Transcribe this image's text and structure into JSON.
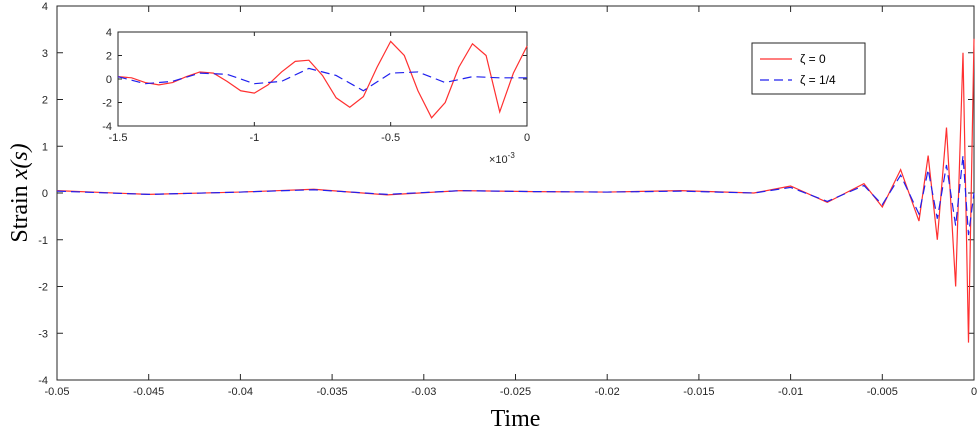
{
  "chart_data": [
    {
      "type": "line",
      "xlabel": "Time",
      "ylabel_prefix": "Strain ",
      "ylabel_math": "x(s)",
      "xlim": [
        -0.05,
        0
      ],
      "ylim": [
        -4,
        4
      ],
      "x_ticks": [
        -0.05,
        -0.045,
        -0.04,
        -0.035,
        -0.03,
        -0.025,
        -0.02,
        -0.015,
        -0.01,
        -0.005,
        0
      ],
      "x_tick_labels": [
        "-0.05",
        "-0.045",
        "-0.04",
        "-0.035",
        "-0.03",
        "-0.025",
        "-0.02",
        "-0.015",
        "-0.01",
        "-0.005",
        "0"
      ],
      "y_ticks": [
        -4,
        -3,
        -2,
        -1,
        0,
        1,
        2,
        3,
        4
      ],
      "y_tick_labels": [
        "-4",
        "-3",
        "-2",
        "-1",
        "0",
        "1",
        "2",
        "3",
        "4"
      ],
      "grid": false,
      "legend_position": "top-right",
      "series": [
        {
          "name": "ζ = 0",
          "color": "#ff3030",
          "style": "solid",
          "x": [
            -0.05,
            -0.045,
            -0.04,
            -0.036,
            -0.032,
            -0.028,
            -0.024,
            -0.02,
            -0.016,
            -0.012,
            -0.01,
            -0.008,
            -0.006,
            -0.005,
            -0.004,
            -0.003,
            -0.0025,
            -0.002,
            -0.0015,
            -0.001,
            -0.0006,
            -0.0003,
            0
          ],
          "y": [
            0.05,
            -0.03,
            0.02,
            0.08,
            -0.04,
            0.05,
            0.03,
            0.02,
            0.05,
            0.0,
            0.15,
            -0.2,
            0.2,
            -0.3,
            0.5,
            -0.6,
            0.8,
            -1.0,
            1.4,
            -2.0,
            3.0,
            -3.2,
            3.3
          ]
        },
        {
          "name": "ζ = 1/4",
          "color": "#2020ee",
          "style": "dashed",
          "x": [
            -0.05,
            -0.045,
            -0.04,
            -0.036,
            -0.032,
            -0.028,
            -0.024,
            -0.02,
            -0.016,
            -0.012,
            -0.01,
            -0.008,
            -0.006,
            -0.005,
            -0.004,
            -0.003,
            -0.0025,
            -0.002,
            -0.0015,
            -0.001,
            -0.0006,
            -0.0003,
            0
          ],
          "y": [
            0.04,
            -0.03,
            0.02,
            0.07,
            -0.03,
            0.05,
            0.03,
            0.02,
            0.04,
            0.0,
            0.12,
            -0.18,
            0.16,
            -0.25,
            0.38,
            -0.45,
            0.5,
            -0.55,
            0.6,
            -0.7,
            0.8,
            -0.9,
            0.0
          ]
        }
      ]
    },
    {
      "type": "line",
      "inset": true,
      "xlim": [
        -0.0015,
        0
      ],
      "ylim": [
        -4,
        4
      ],
      "x_ticks": [
        -0.0015,
        -0.001,
        -0.0005,
        0
      ],
      "x_tick_labels": [
        "-1.5",
        "-1",
        "-0.5",
        "0"
      ],
      "x_multiplier_base": "×10",
      "x_multiplier_exp": "-3",
      "y_ticks": [
        -4,
        -2,
        0,
        2,
        4
      ],
      "y_tick_labels": [
        "-4",
        "-2",
        "0",
        "2",
        "4"
      ],
      "series": [
        {
          "name": "ζ = 0",
          "color": "#ff3030",
          "style": "solid",
          "x": [
            -0.0015,
            -0.00145,
            -0.0014,
            -0.00135,
            -0.0013,
            -0.00125,
            -0.0012,
            -0.00115,
            -0.0011,
            -0.00105,
            -0.001,
            -0.00095,
            -0.0009,
            -0.00085,
            -0.0008,
            -0.00075,
            -0.0007,
            -0.00065,
            -0.0006,
            -0.00055,
            -0.0005,
            -0.00045,
            -0.0004,
            -0.00035,
            -0.0003,
            -0.00025,
            -0.0002,
            -0.00015,
            -0.0001,
            -5e-05,
            0
          ],
          "y": [
            0.2,
            0.1,
            -0.3,
            -0.5,
            -0.3,
            0.2,
            0.6,
            0.5,
            -0.2,
            -1.0,
            -1.2,
            -0.5,
            0.6,
            1.5,
            1.6,
            0.3,
            -1.6,
            -2.4,
            -1.5,
            1.0,
            3.2,
            2.0,
            -1.0,
            -3.3,
            -2.0,
            1.0,
            3.0,
            2.0,
            -2.8,
            0.5,
            2.8
          ]
        },
        {
          "name": "ζ = 1/4",
          "color": "#2020ee",
          "style": "dashed",
          "x": [
            -0.0015,
            -0.0014,
            -0.0013,
            -0.0012,
            -0.0011,
            -0.001,
            -0.0009,
            -0.0008,
            -0.0007,
            -0.0006,
            -0.0005,
            -0.0004,
            -0.0003,
            -0.0002,
            -0.0001,
            0
          ],
          "y": [
            0.2,
            -0.4,
            -0.2,
            0.5,
            0.4,
            -0.4,
            -0.2,
            0.9,
            0.3,
            -1.0,
            0.5,
            0.6,
            -0.3,
            0.2,
            0.1,
            0.1
          ]
        }
      ]
    }
  ]
}
